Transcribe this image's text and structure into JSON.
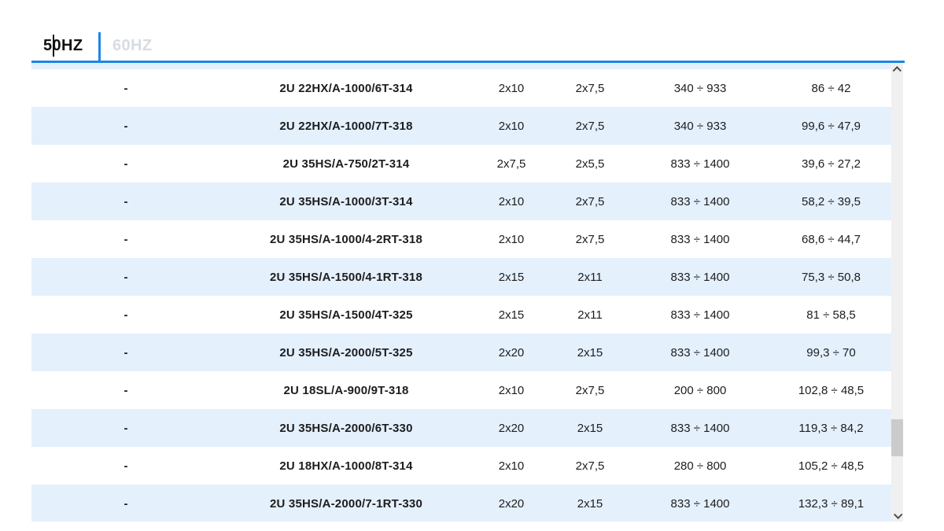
{
  "tabs": [
    {
      "label": "50HZ",
      "active": true
    },
    {
      "label": "60HZ",
      "active": false
    }
  ],
  "table": {
    "rows": [
      [
        "-",
        "2U 22HX/A-1000/6T-314",
        "2x10",
        "2x7,5",
        "340 ÷ 933",
        "86 ÷ 42"
      ],
      [
        "-",
        "2U 22HX/A-1000/7T-318",
        "2x10",
        "2x7,5",
        "340 ÷ 933",
        "99,6 ÷ 47,9"
      ],
      [
        "-",
        "2U 35HS/A-750/2T-314",
        "2x7,5",
        "2x5,5",
        "833 ÷ 1400",
        "39,6 ÷ 27,2"
      ],
      [
        "-",
        "2U 35HS/A-1000/3T-314",
        "2x10",
        "2x7,5",
        "833 ÷ 1400",
        "58,2 ÷ 39,5"
      ],
      [
        "-",
        "2U 35HS/A-1000/4-2RT-318",
        "2x10",
        "2x7,5",
        "833 ÷ 1400",
        "68,6 ÷ 44,7"
      ],
      [
        "-",
        "2U 35HS/A-1500/4-1RT-318",
        "2x15",
        "2x11",
        "833 ÷ 1400",
        "75,3 ÷ 50,8"
      ],
      [
        "-",
        "2U 35HS/A-1500/4T-325",
        "2x15",
        "2x11",
        "833 ÷ 1400",
        "81 ÷ 58,5"
      ],
      [
        "-",
        "2U 35HS/A-2000/5T-325",
        "2x20",
        "2x15",
        "833 ÷ 1400",
        "99,3 ÷ 70"
      ],
      [
        "-",
        "2U 18SL/A-900/9T-318",
        "2x10",
        "2x7,5",
        "200 ÷ 800",
        "102,8 ÷ 48,5"
      ],
      [
        "-",
        "2U 35HS/A-2000/6T-330",
        "2x20",
        "2x15",
        "833 ÷ 1400",
        "119,3 ÷ 84,2"
      ],
      [
        "-",
        "2U 18HX/A-1000/8T-314",
        "2x10",
        "2x7,5",
        "280 ÷ 800",
        "105,2 ÷ 48,5"
      ],
      [
        "-",
        "2U 35HS/A-2000/7-1RT-330",
        "2x20",
        "2x15",
        "833 ÷ 1400",
        "132,3 ÷ 89,1"
      ]
    ]
  },
  "scrollbar": {
    "up_icon": "chevron-up",
    "down_icon": "chevron-down"
  },
  "colors": {
    "accent_blue": "#1d86e4",
    "row_alt_blue": "#e4f0fc",
    "inactive_tab_gray": "#d8dce1",
    "text": "#1d1d1f",
    "scroll_track": "#f0f0f1",
    "scroll_thumb": "#cbcbcb"
  }
}
